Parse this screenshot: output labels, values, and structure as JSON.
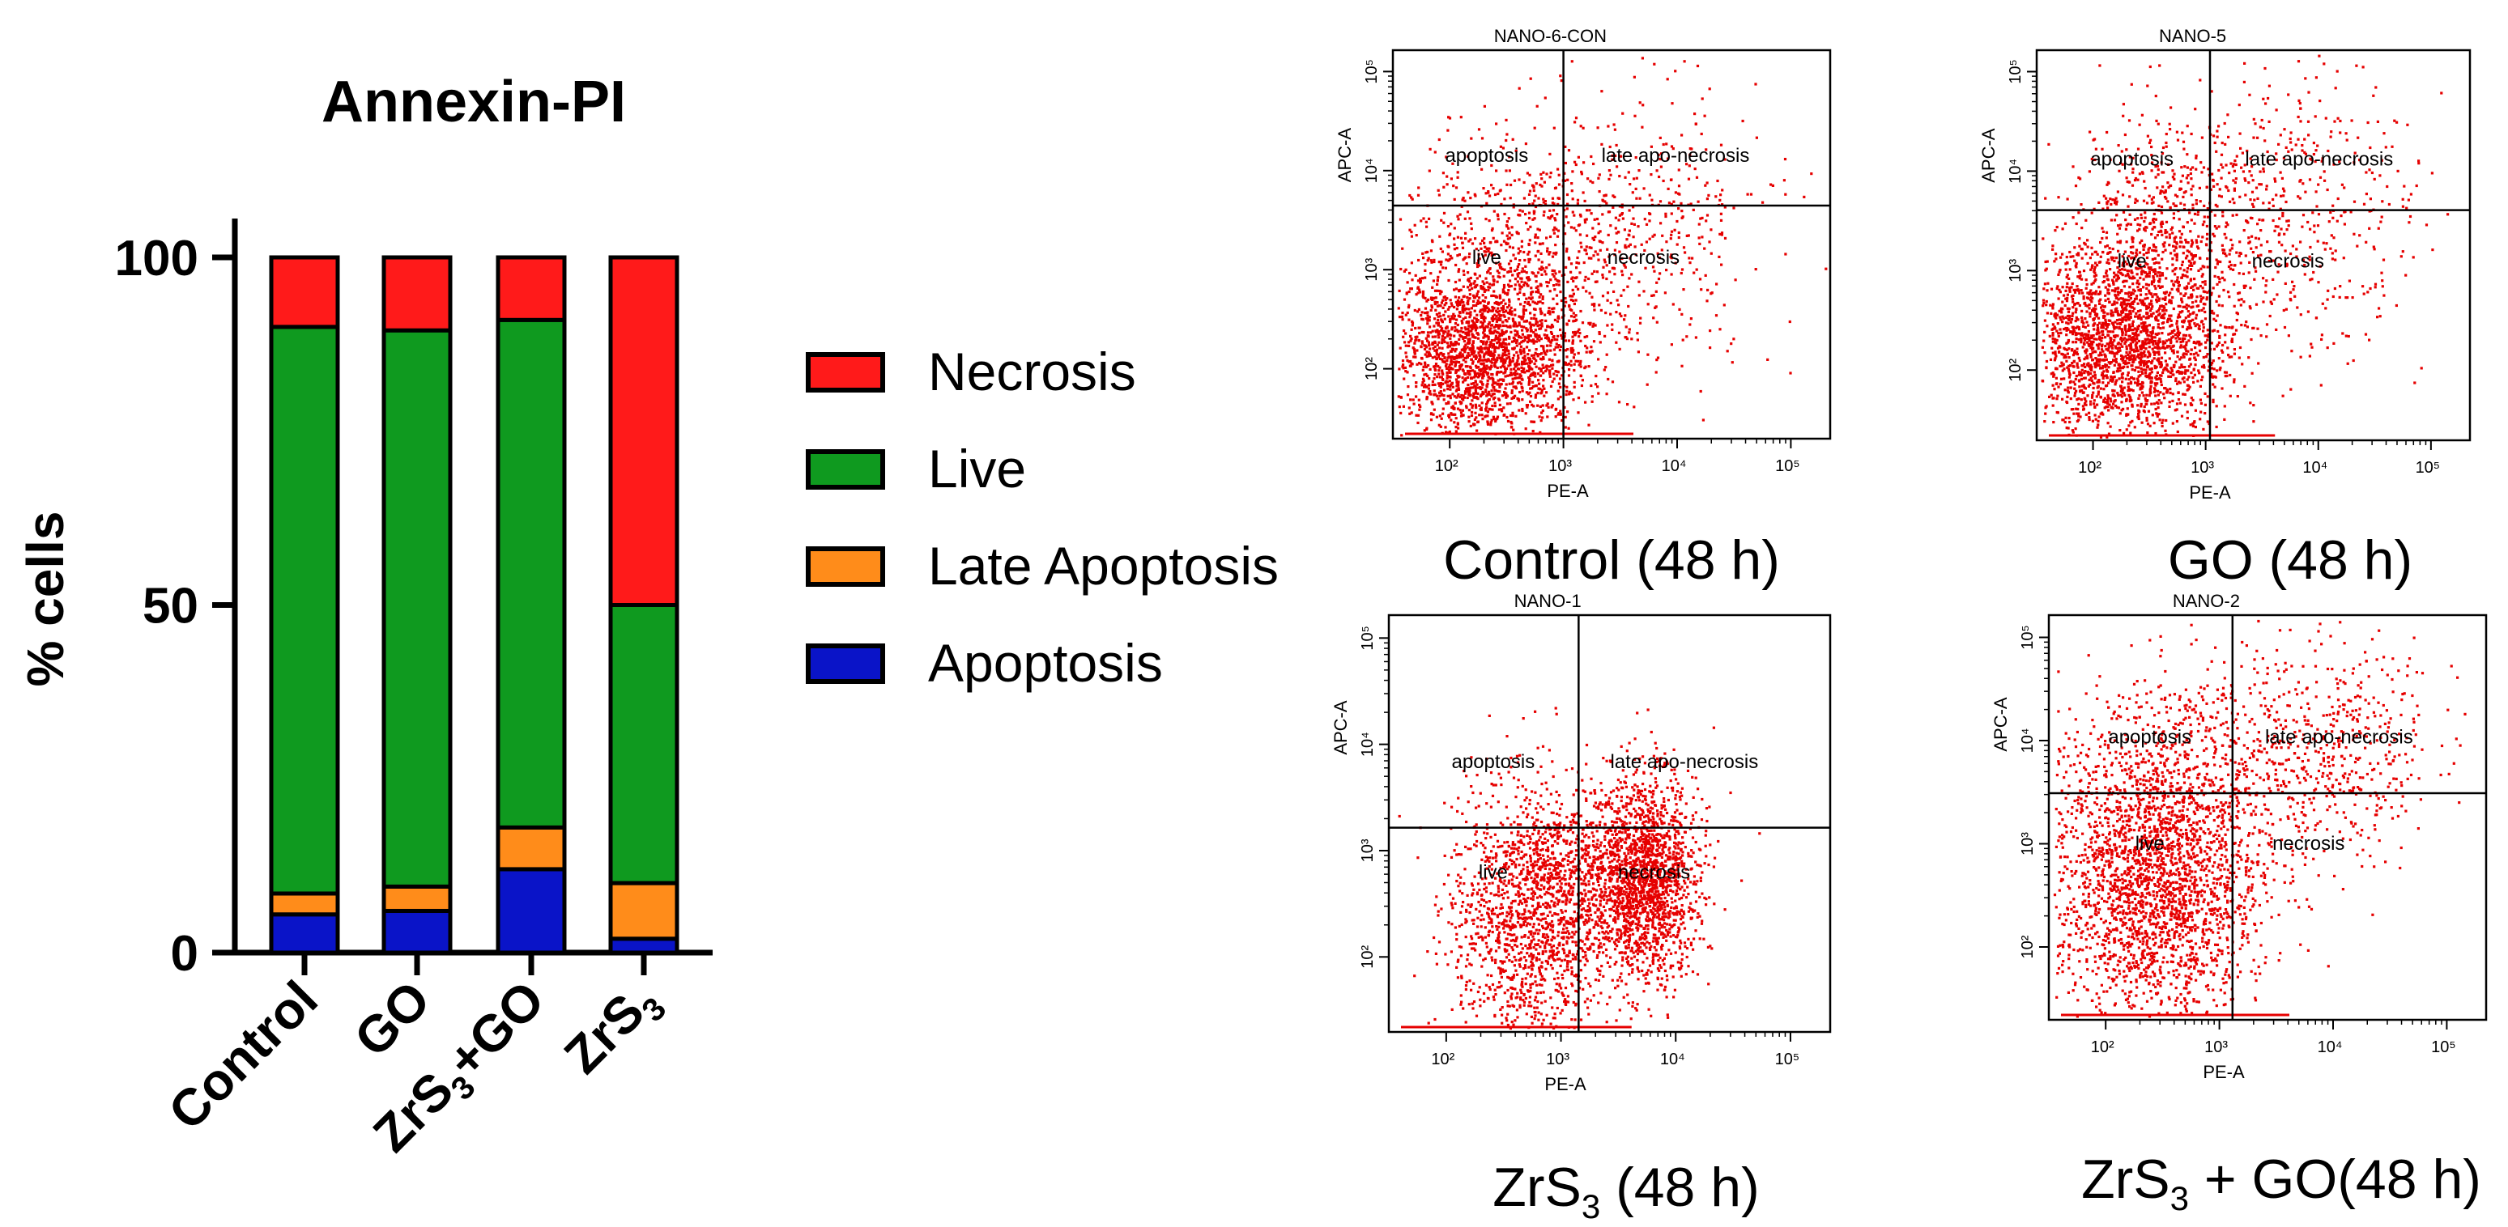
{
  "colors": {
    "necrosis": "#ff1a1a",
    "live": "#0f9a1f",
    "late_apoptosis": "#ff8c1a",
    "apoptosis": "#0a14c8",
    "dots": "#e60000",
    "axis": "#000000"
  },
  "chart_data": [
    {
      "type": "bar",
      "stacked": true,
      "title": "Annexin-PI",
      "ylabel": "% cells",
      "xlabel": "",
      "ylim": [
        0,
        100
      ],
      "yticks": [
        "0",
        "50",
        "100"
      ],
      "categories": [
        "Control",
        "GO",
        "ZrS3+GO",
        "ZrS3"
      ],
      "legend_position": "right",
      "series": [
        {
          "name": "Apoptosis",
          "color": "#0a14c8",
          "values": [
            5.5,
            6,
            12,
            2
          ]
        },
        {
          "name": "Late Apoptosis",
          "color": "#ff8c1a",
          "values": [
            3,
            3.5,
            6,
            8
          ]
        },
        {
          "name": "Live",
          "color": "#0f9a1f",
          "values": [
            81.5,
            80,
            73,
            40
          ]
        },
        {
          "name": "Necrosis",
          "color": "#ff1a1a",
          "values": [
            10,
            10.5,
            9,
            50
          ]
        }
      ],
      "legend_order": [
        "Necrosis",
        "Live",
        "Late Apoptosis",
        "Apoptosis"
      ]
    },
    {
      "type": "scatter",
      "title": "NANO-6-CON",
      "caption": "Control (48 h)",
      "xlabel": "PE-A",
      "ylabel": "APC-A",
      "xscale": "log",
      "yscale": "log",
      "x_ticks": [
        "10²",
        "10³",
        "10⁴",
        "10⁵"
      ],
      "y_ticks": [
        "10²",
        "10³",
        "10⁴",
        "10⁵"
      ],
      "quadrants": [
        "apoptosis",
        "late apo-necrosis",
        "live",
        "necrosis"
      ]
    },
    {
      "type": "scatter",
      "title": "NANO-5",
      "caption": "GO (48 h)",
      "xlabel": "PE-A",
      "ylabel": "APC-A",
      "xscale": "log",
      "yscale": "log",
      "x_ticks": [
        "10²",
        "10³",
        "10⁴",
        "10⁵"
      ],
      "y_ticks": [
        "10²",
        "10³",
        "10⁴",
        "10⁵"
      ],
      "quadrants": [
        "apoptosis",
        "late apo-necrosis",
        "live",
        "necrosis"
      ]
    },
    {
      "type": "scatter",
      "title": "NANO-1",
      "caption": "ZrS3 (48 h)",
      "xlabel": "PE-A",
      "ylabel": "APC-A",
      "xscale": "log",
      "yscale": "log",
      "x_ticks": [
        "10²",
        "10³",
        "10⁴",
        "10⁵"
      ],
      "y_ticks": [
        "10²",
        "10³",
        "10⁴",
        "10⁵"
      ],
      "quadrants": [
        "apoptosis",
        "late apo-necrosis",
        "live",
        "necrosis"
      ]
    },
    {
      "type": "scatter",
      "title": "NANO-2",
      "caption": "ZrS3 + GO(48 h)",
      "xlabel": "PE-A",
      "ylabel": "APC-A",
      "xscale": "log",
      "yscale": "log",
      "x_ticks": [
        "10²",
        "10³",
        "10⁴",
        "10⁵"
      ],
      "y_ticks": [
        "10²",
        "10³",
        "10⁴",
        "10⁵"
      ],
      "quadrants": [
        "apoptosis",
        "late apo-necrosis",
        "live",
        "necrosis"
      ]
    }
  ]
}
